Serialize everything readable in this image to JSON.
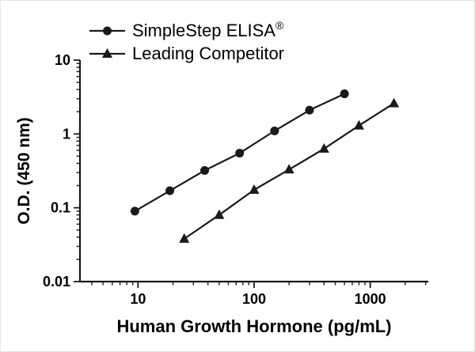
{
  "figure": {
    "legend": [
      {
        "label": "SimpleStep ELISA",
        "suffix": "®",
        "marker": "circle"
      },
      {
        "label": "Leading Competitor",
        "suffix": "",
        "marker": "triangle"
      }
    ]
  },
  "chart_data": {
    "type": "line",
    "title": "",
    "xlabel": "Human Growth Hormone (pg/mL)",
    "ylabel": "O.D. (450 nm)",
    "xscale": "log",
    "yscale": "log",
    "xlim": [
      3.162,
      3162
    ],
    "ylim": [
      0.01,
      10
    ],
    "x_ticks": [
      10,
      100,
      1000
    ],
    "y_ticks": [
      0.01,
      0.1,
      1,
      10
    ],
    "grid": false,
    "legend_position": "top-left",
    "colors": {
      "ink": "#1a1a1a",
      "background": "#ffffff"
    },
    "series": [
      {
        "name": "SimpleStep ELISA®",
        "marker": "circle",
        "x": [
          9.4,
          18.8,
          37.5,
          75,
          150,
          300,
          600
        ],
        "y": [
          0.09,
          0.17,
          0.32,
          0.55,
          1.1,
          2.1,
          3.5
        ]
      },
      {
        "name": "Leading Competitor",
        "marker": "triangle",
        "x": [
          25,
          50,
          100,
          200,
          400,
          800,
          1600
        ],
        "y": [
          0.038,
          0.08,
          0.175,
          0.33,
          0.63,
          1.3,
          2.6
        ]
      }
    ]
  }
}
